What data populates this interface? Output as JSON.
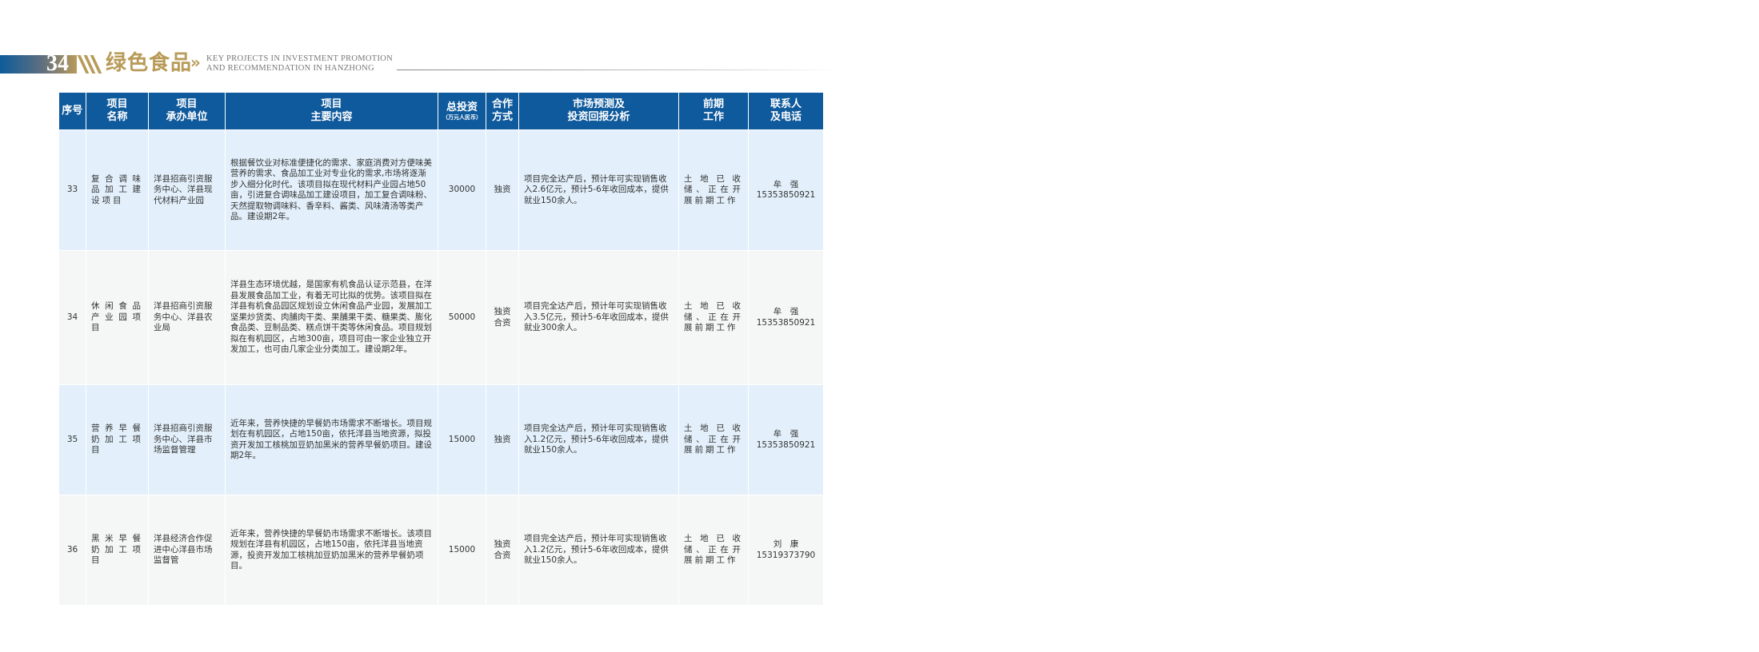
{
  "page_header": {
    "page_number": "34",
    "category": "绿色食品",
    "separator": "»",
    "english_line1": "KEY PROJECTS IN INVESTMENT PROMOTION",
    "english_line2": "AND RECOMMENDATION IN HANZHONG"
  },
  "table": {
    "headers": {
      "no": "序号",
      "name_1": "项目",
      "name_2": "名称",
      "unit_1": "项目",
      "unit_2": "承办单位",
      "content_1": "项目",
      "content_2": "主要内容",
      "invest_1": "总投资",
      "invest_unit": "（万元人民币）",
      "coop_1": "合作",
      "coop_2": "方式",
      "market_1": "市场预测及",
      "market_2": "投资回报分析",
      "prep_1": "前期",
      "prep_2": "工作",
      "contact_1": "联系人",
      "contact_2": "及电话"
    },
    "rows": [
      {
        "no": "33",
        "name": "复合调味品加工建设项目",
        "unit": "洋县招商引资服务中心、洋县现代材料产业园",
        "content": "根据餐饮业对标准便捷化的需求、家庭消费对方便味美营养的需求、食品加工业对专业化的需求,市场将逐渐步入细分化时代。该项目拟在现代材料产业园占地50亩，引进复合调味品加工建设项目，加工复合调味粉、天然提取物调味料、香辛料、酱类、风味清汤等类产品。建设期2年。",
        "investment": "30000",
        "coop_1": "独资",
        "coop_2": "",
        "market": "项目完全达产后，预计年可实现销售收入2.6亿元，预计5-6年收回成本，提供就业150余人。",
        "prep": "土地已收储、正在开展前期工作",
        "contact_name": "牟　强",
        "contact_phone": "15353850921"
      },
      {
        "no": "34",
        "name": "休闲食品产业园项目",
        "unit": "洋县招商引资服务中心、洋县农业局",
        "content": "洋县生态环境优越，是国家有机食品认证示范县，在洋县发展食品加工业，有着无可比拟的优势。该项目拟在洋县有机食品园区规划设立休闲食品产业园，发展加工坚果炒货类、肉脯肉干类、果脯果干类、糖果类、膨化食品类、豆制品类、糕点饼干类等休闲食品。项目规划拟在有机园区，占地300亩，项目可由一家企业独立开发加工，也可由几家企业分类加工。建设期2年。",
        "investment": "50000",
        "coop_1": "独资",
        "coop_2": "合资",
        "market": "项目完全达产后，预计年可实现销售收入3.5亿元，预计5-6年收回成本，提供就业300余人。",
        "prep": "土地已收储、正在开展前期工作",
        "contact_name": "牟　强",
        "contact_phone": "15353850921"
      },
      {
        "no": "35",
        "name": "营养早餐奶加工项目",
        "unit": "洋县招商引资服务中心、洋县市场监督管理",
        "content": "近年来，营养快捷的早餐奶市场需求不断增长。项目规划在有机园区，占地150亩，依托洋县当地资源，拟投资开发加工核桃加豆奶加黑米的营养早餐奶项目。建设期2年。",
        "investment": "15000",
        "coop_1": "独资",
        "coop_2": "",
        "market": "项目完全达产后，预计年可实现销售收入1.2亿元，预计5-6年收回成本，提供就业150余人。",
        "prep": "土地已收储、正在开展前期工作",
        "contact_name": "牟　强",
        "contact_phone": "15353850921"
      },
      {
        "no": "36",
        "name": "黑米早餐奶加工项目",
        "unit": "洋县经济合作促进中心洋县市场监督管",
        "content": "近年来，营养快捷的早餐奶市场需求不断增长。该项目规划在洋县有机园区，占地150亩，依托洋县当地资源，投资开发加工核桃加豆奶加黑米的营养早餐奶项目。",
        "investment": "15000",
        "coop_1": "独资",
        "coop_2": "合资",
        "market": "项目完全达产后，预计年可实现销售收入1.2亿元，预计5-6年收回成本，提供就业150余人。",
        "prep": "土地已收储、正在开展前期工作",
        "contact_name": "刘　康",
        "contact_phone": "15319373790"
      }
    ]
  },
  "colors": {
    "header_blue": "#0f5a9c",
    "gold": "#b89b58",
    "row_blue": "#e3f0fb",
    "row_gray": "#f5f7f7"
  }
}
